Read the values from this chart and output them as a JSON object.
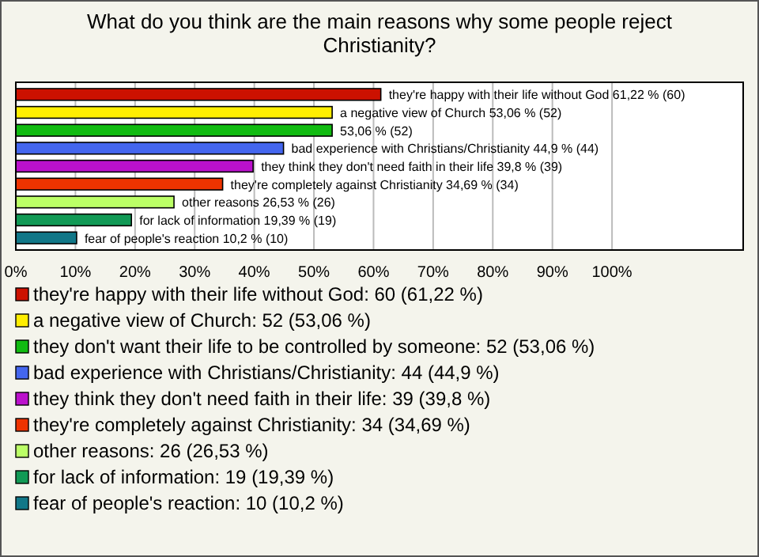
{
  "chart_data": {
    "type": "bar",
    "orientation": "horizontal",
    "title": "What do you think are the main reasons why some people reject Christianity?",
    "categories": [
      null,
      null,
      null,
      null,
      null,
      null,
      null,
      null,
      null
    ],
    "series": [
      {
        "name": "they're happy with their life without God: 60 (61,22 %)",
        "color": "#cc1100",
        "values": [
          61.22,
          null,
          null,
          null,
          null,
          null,
          null,
          null,
          null
        ],
        "value_labels": [
          "they're happy with their life without God 61,22 % (60)",
          null,
          null,
          null,
          null,
          null,
          null,
          null,
          null
        ]
      },
      {
        "name": "a negative view of Church: 52 (53,06 %)",
        "color": "#ffee00",
        "values": [
          null,
          53.06,
          null,
          null,
          null,
          null,
          null,
          null,
          null
        ],
        "value_labels": [
          null,
          "a negative view of Church 53,06 % (52)",
          null,
          null,
          null,
          null,
          null,
          null,
          null
        ]
      },
      {
        "name": "they don't want their life to be controlled by someone: 52 (53,06 %)",
        "color": "#11bb11",
        "values": [
          null,
          null,
          53.06,
          null,
          null,
          null,
          null,
          null,
          null
        ],
        "value_labels": [
          null,
          null,
          "53,06 % (52)",
          null,
          null,
          null,
          null,
          null,
          null
        ]
      },
      {
        "name": "bad experience with Christians/Christianity: 44 (44,9 %)",
        "color": "#4466ee",
        "values": [
          null,
          null,
          null,
          44.9,
          null,
          null,
          null,
          null,
          null
        ],
        "value_labels": [
          null,
          null,
          null,
          "bad experience with Christians/Christianity 44,9 % (44)",
          null,
          null,
          null,
          null,
          null
        ]
      },
      {
        "name": "they think they don't need faith in their life: 39 (39,8 %)",
        "color": "#bb11cc",
        "values": [
          null,
          null,
          null,
          null,
          39.8,
          null,
          null,
          null,
          null
        ],
        "value_labels": [
          null,
          null,
          null,
          null,
          "they think they don't need faith in their life 39,8 % (39)",
          null,
          null,
          null,
          null
        ]
      },
      {
        "name": "they're completely against Christianity: 34 (34,69 %)",
        "color": "#ee3300",
        "values": [
          null,
          null,
          null,
          null,
          null,
          34.69,
          null,
          null,
          null
        ],
        "value_labels": [
          null,
          null,
          null,
          null,
          null,
          "they're completely against Christianity 34,69 % (34)",
          null,
          null,
          null
        ]
      },
      {
        "name": "other reasons: 26 (26,53 %)",
        "color": "#bbff66",
        "values": [
          null,
          null,
          null,
          null,
          null,
          null,
          26.53,
          null,
          null
        ],
        "value_labels": [
          null,
          null,
          null,
          null,
          null,
          null,
          "other reasons 26,53 % (26)",
          null,
          null
        ]
      },
      {
        "name": "for lack of information: 19 (19,39 %)",
        "color": "#119955",
        "values": [
          null,
          null,
          null,
          null,
          null,
          null,
          null,
          19.39,
          null
        ],
        "value_labels": [
          null,
          null,
          null,
          null,
          null,
          null,
          null,
          "for lack of information 19,39 % (19)",
          null
        ]
      },
      {
        "name": "fear of people's reaction: 10 (10,2 %)",
        "color": "#117788",
        "values": [
          null,
          null,
          null,
          null,
          null,
          null,
          null,
          null,
          10.2
        ],
        "value_labels": [
          null,
          null,
          null,
          null,
          null,
          null,
          null,
          null,
          "fear of people's reaction 10,2 % (10)"
        ]
      }
    ],
    "xlim": [
      0,
      122
    ],
    "xticks": [
      {
        "value": 0,
        "label": "0%"
      },
      {
        "value": 10,
        "label": "10%"
      },
      {
        "value": 20,
        "label": "20%"
      },
      {
        "value": 30,
        "label": "30%"
      },
      {
        "value": 40,
        "label": "40%"
      },
      {
        "value": 50,
        "label": "50%"
      },
      {
        "value": 60,
        "label": "60%"
      },
      {
        "value": 70,
        "label": "70%"
      },
      {
        "value": 80,
        "label": "80%"
      },
      {
        "value": 90,
        "label": "90%"
      },
      {
        "value": 100,
        "label": "100%"
      }
    ],
    "grid": "x",
    "legend": "bottom",
    "tick_labels": "x"
  }
}
